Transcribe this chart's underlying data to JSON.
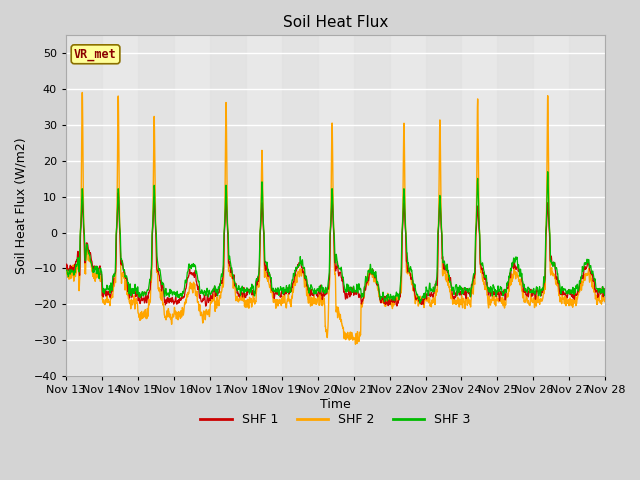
{
  "title": "Soil Heat Flux",
  "xlabel": "Time",
  "ylabel": "Soil Heat Flux (W/m2)",
  "ylim": [
    -40,
    55
  ],
  "yticks": [
    -40,
    -30,
    -20,
    -10,
    0,
    10,
    20,
    30,
    40,
    50
  ],
  "x_tick_labels": [
    "Nov 13",
    "Nov 14",
    "Nov 15",
    "Nov 16",
    "Nov 17",
    "Nov 18",
    "Nov 19",
    "Nov 20",
    "Nov 21",
    "Nov 22",
    "Nov 23",
    "Nov 24",
    "Nov 25",
    "Nov 26",
    "Nov 27",
    "Nov 28"
  ],
  "colors": {
    "SHF1": "#cc0000",
    "SHF2": "#ffa500",
    "SHF3": "#00bb00"
  },
  "legend_labels": [
    "SHF 1",
    "SHF 2",
    "SHF 3"
  ],
  "annotation_text": "VR_met",
  "annotation_color": "#8b0000",
  "annotation_bg": "#ffff99",
  "fig_bg": "#d4d4d4",
  "plot_bg": "#e8e8e8",
  "grid_color": "#ffffff",
  "title_fontsize": 11,
  "label_fontsize": 9,
  "tick_fontsize": 8,
  "peak_days_shf2": [
    0.45,
    1.45,
    2.45,
    4.45,
    5.45,
    7.4,
    9.4,
    10.4,
    11.45,
    13.4
  ],
  "peak_amps_shf2": [
    41,
    40,
    34,
    38,
    24,
    32,
    32,
    33,
    39,
    40
  ],
  "deep_neg_day": 7.6,
  "seed": 17
}
